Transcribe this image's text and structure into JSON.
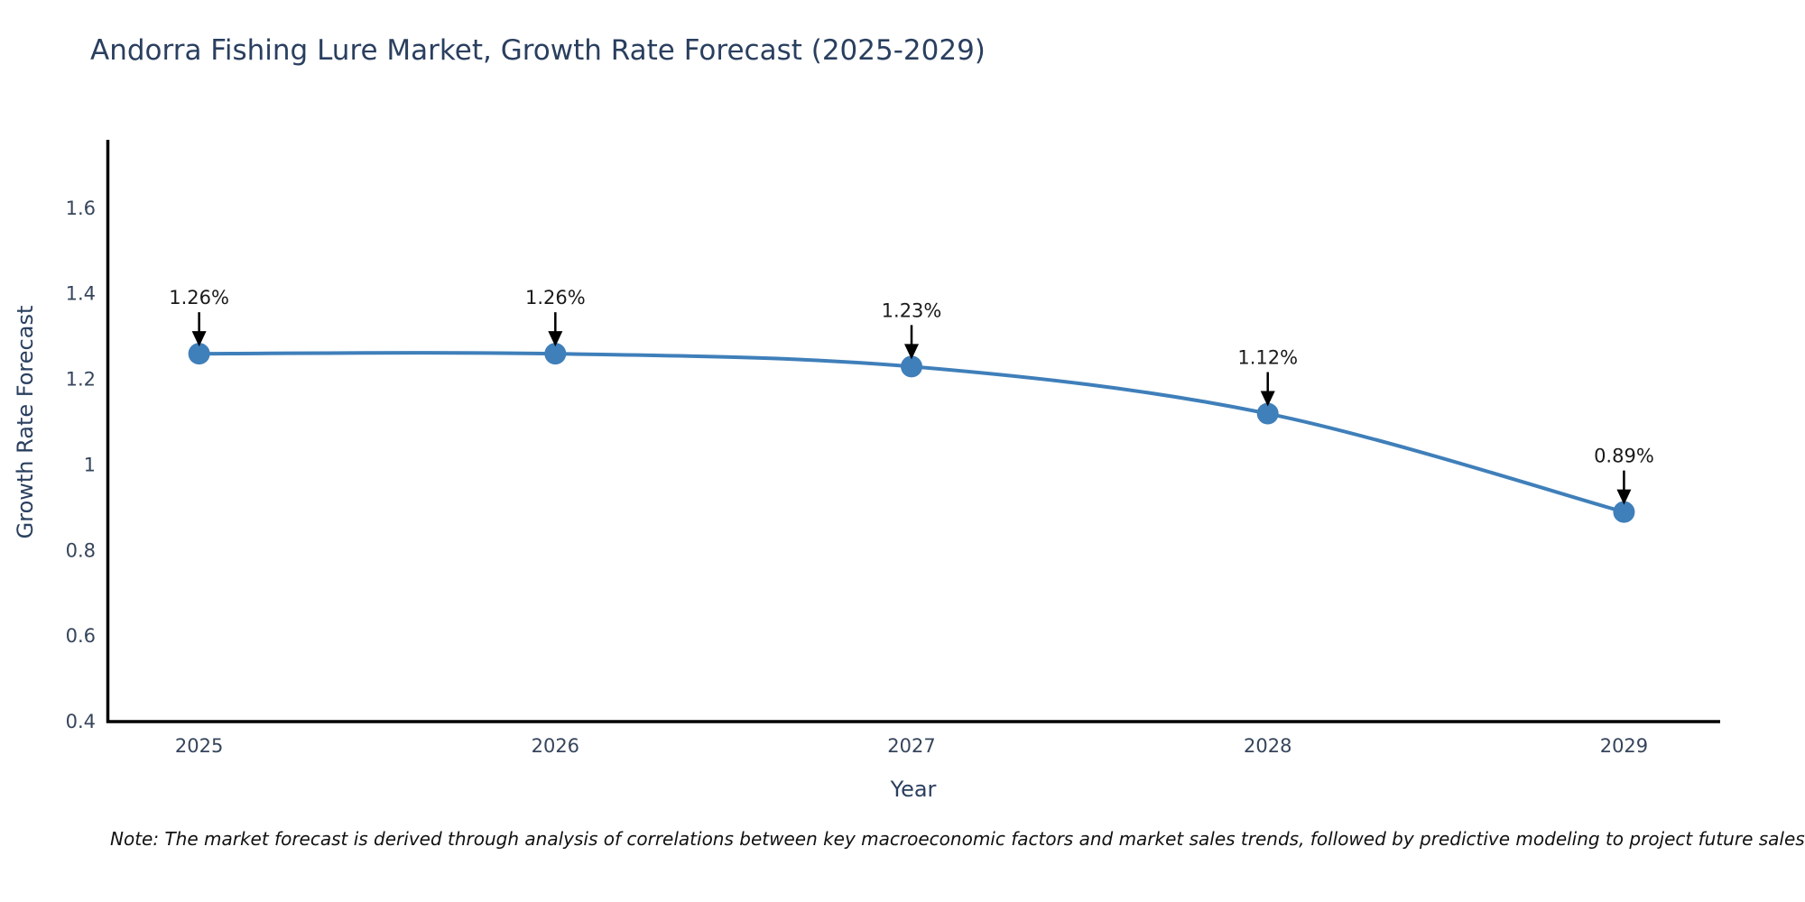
{
  "title": "Andorra Fishing Lure Market, Growth Rate Forecast (2025-2029)",
  "note": "Note: The market forecast is derived through analysis of correlations between key macroeconomic factors and market sales trends, followed by predictive modeling to project future sales",
  "chart_data": {
    "type": "line",
    "title": "Andorra Fishing Lure Market, Growth Rate Forecast (2025-2029)",
    "xlabel": "Year",
    "ylabel": "Growth Rate Forecast",
    "x": [
      2025,
      2026,
      2027,
      2028,
      2029
    ],
    "series": [
      {
        "name": "Growth Rate Forecast",
        "values": [
          1.26,
          1.26,
          1.23,
          1.12,
          0.89
        ]
      }
    ],
    "point_labels": [
      "1.26%",
      "1.26%",
      "1.23%",
      "1.12%",
      "0.89%"
    ],
    "xticks": [
      2025,
      2026,
      2027,
      2028,
      2029
    ],
    "xtick_labels": [
      "2025",
      "2026",
      "2027",
      "2028",
      "2029"
    ],
    "yticks": [
      0.4,
      0.6,
      0.8,
      1,
      1.2,
      1.4,
      1.6
    ],
    "ytick_labels": [
      "0.4",
      "0.6",
      "0.8",
      "1",
      "1.2",
      "1.4",
      "1.6"
    ],
    "xlim": [
      2024.74,
      2029.27
    ],
    "ylim": [
      0.4,
      1.76
    ],
    "grid": false,
    "legend": "none",
    "line_shape": "spline",
    "colors": {
      "line": "#3f7fba",
      "marker": "#3f7fba",
      "axis": "#000000",
      "annotation_text": "#1a1a1a",
      "annotation_arrow": "#000000",
      "title": "#2a3f5f",
      "tick": "#36455c",
      "background": "#ffffff"
    }
  }
}
